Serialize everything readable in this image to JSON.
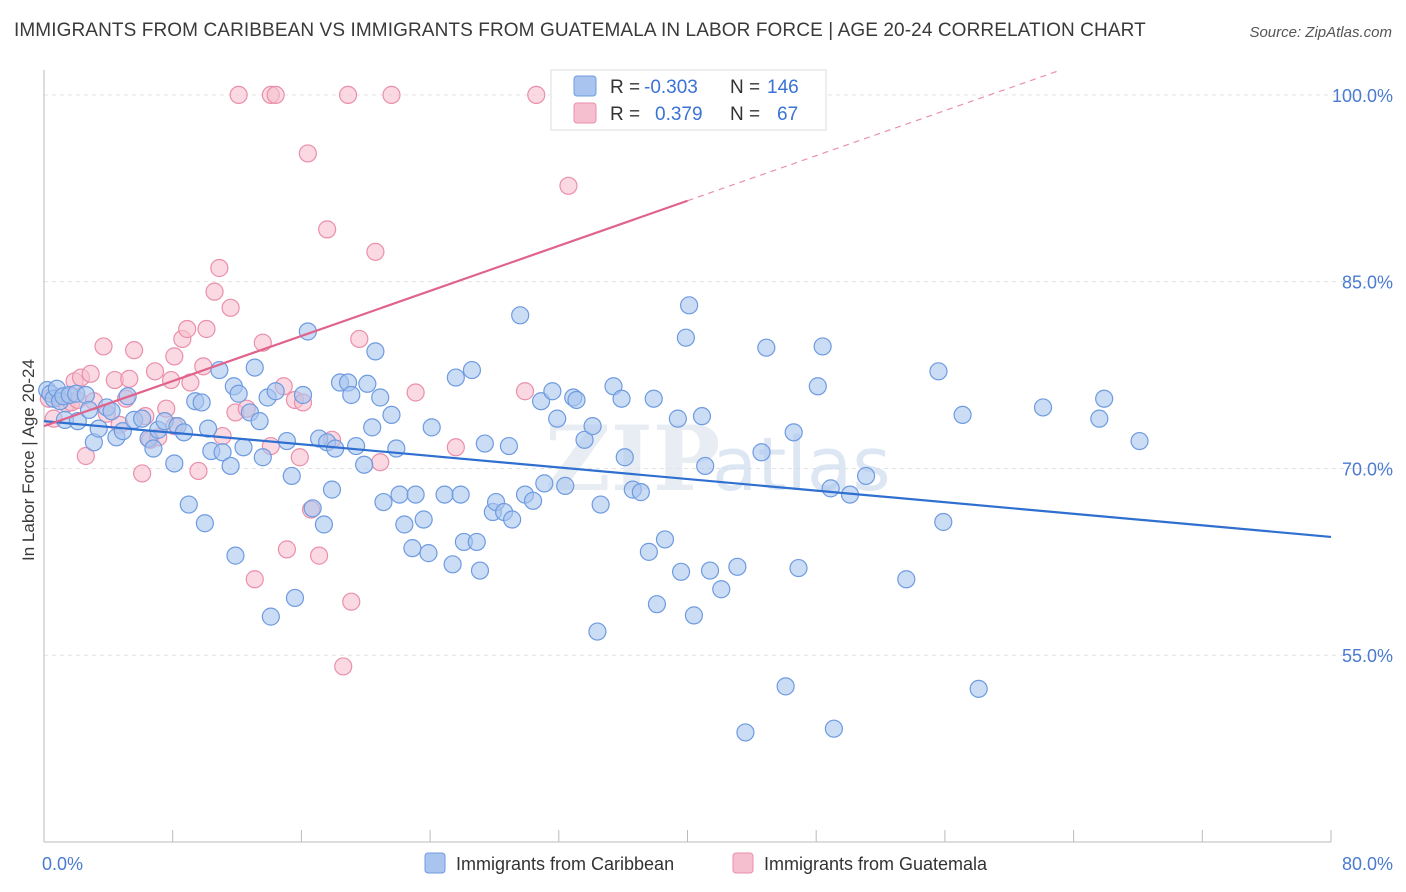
{
  "header": {
    "title": "IMMIGRANTS FROM CARIBBEAN VS IMMIGRANTS FROM GUATEMALA IN LABOR FORCE | AGE 20-24 CORRELATION CHART",
    "source": "Source: ZipAtlas.com"
  },
  "colors": {
    "blue_fill": "#a9c4ee",
    "blue_stroke": "#6e9be0",
    "blue_line": "#2f6fd0",
    "pink_fill": "#f6bfcf",
    "pink_stroke": "#ea8fab",
    "pink_line": "#e0638c",
    "grid": "#e3e3e3",
    "tick_text": "#4a7bd0"
  },
  "watermark": {
    "zip": "ZIP",
    "atlas": "atlas"
  },
  "chart_data": {
    "type": "scatter",
    "title": "IMMIGRANTS FROM CARIBBEAN VS IMMIGRANTS FROM GUATEMALA IN LABOR FORCE | AGE 20-24 CORRELATION CHART",
    "xlabel": "",
    "ylabel": "In Labor Force | Age 20-24",
    "xlim": [
      0,
      80
    ],
    "ylim": [
      40,
      102
    ],
    "x_tick_labels": [
      "0.0%",
      "80.0%"
    ],
    "y_ticks": [
      55,
      70,
      85,
      100
    ],
    "y_tick_labels": [
      "55.0%",
      "70.0%",
      "85.0%",
      "100.0%"
    ],
    "legend": [
      {
        "name": "Immigrants from Caribbean",
        "r_label": "R =",
        "r": "-0.303",
        "n_label": "N =",
        "n": "146"
      },
      {
        "name": "Immigrants from Guatemala",
        "r_label": "R =",
        "r": "0.379",
        "n_label": "N =",
        "n": "67"
      }
    ],
    "series": [
      {
        "name": "Immigrants from Caribbean",
        "color": "#a9c4ee",
        "trend": {
          "x": [
            0,
            80
          ],
          "y": [
            73.8,
            64.5
          ],
          "dash_from_x": 80
        },
        "points": [
          [
            0.2,
            76.3
          ],
          [
            0.4,
            76.0
          ],
          [
            0.6,
            75.6
          ],
          [
            0.8,
            76.4
          ],
          [
            1.0,
            75.4
          ],
          [
            1.2,
            75.8
          ],
          [
            1.6,
            75.9
          ],
          [
            2.0,
            76.0
          ],
          [
            1.3,
            73.9
          ],
          [
            2.1,
            73.8
          ],
          [
            2.6,
            75.9
          ],
          [
            2.8,
            74.7
          ],
          [
            3.1,
            72.1
          ],
          [
            3.4,
            73.2
          ],
          [
            3.9,
            74.9
          ],
          [
            4.2,
            74.6
          ],
          [
            4.5,
            72.5
          ],
          [
            4.9,
            73.0
          ],
          [
            5.2,
            75.8
          ],
          [
            5.6,
            73.9
          ],
          [
            6.1,
            74.0
          ],
          [
            6.5,
            72.4
          ],
          [
            6.8,
            71.6
          ],
          [
            7.1,
            73.1
          ],
          [
            7.5,
            73.8
          ],
          [
            8.1,
            70.4
          ],
          [
            8.3,
            73.4
          ],
          [
            8.7,
            72.9
          ],
          [
            9.0,
            67.1
          ],
          [
            9.4,
            75.4
          ],
          [
            9.8,
            75.3
          ],
          [
            10.0,
            65.6
          ],
          [
            10.2,
            73.2
          ],
          [
            10.4,
            71.4
          ],
          [
            10.9,
            77.9
          ],
          [
            11.1,
            71.3
          ],
          [
            11.6,
            70.2
          ],
          [
            11.8,
            76.6
          ],
          [
            12.1,
            76.0
          ],
          [
            12.4,
            71.7
          ],
          [
            12.8,
            74.5
          ],
          [
            13.1,
            78.1
          ],
          [
            13.4,
            73.8
          ],
          [
            13.6,
            70.9
          ],
          [
            13.9,
            75.7
          ],
          [
            14.1,
            58.1
          ],
          [
            14.4,
            76.2
          ],
          [
            15.1,
            72.2
          ],
          [
            15.4,
            69.4
          ],
          [
            15.6,
            59.6
          ],
          [
            16.1,
            75.9
          ],
          [
            16.4,
            81.0
          ],
          [
            16.7,
            66.8
          ],
          [
            17.1,
            72.4
          ],
          [
            17.4,
            65.5
          ],
          [
            17.6,
            72.1
          ],
          [
            17.9,
            68.3
          ],
          [
            18.1,
            71.6
          ],
          [
            18.4,
            76.9
          ],
          [
            18.9,
            76.9
          ],
          [
            19.1,
            75.9
          ],
          [
            19.4,
            71.8
          ],
          [
            19.9,
            70.3
          ],
          [
            20.1,
            76.8
          ],
          [
            20.4,
            73.3
          ],
          [
            20.6,
            79.4
          ],
          [
            20.9,
            75.7
          ],
          [
            21.1,
            67.3
          ],
          [
            21.6,
            74.3
          ],
          [
            21.9,
            71.6
          ],
          [
            22.1,
            67.9
          ],
          [
            22.4,
            65.5
          ],
          [
            22.9,
            63.6
          ],
          [
            23.1,
            67.9
          ],
          [
            23.6,
            65.9
          ],
          [
            23.9,
            63.2
          ],
          [
            24.1,
            73.3
          ],
          [
            24.9,
            67.9
          ],
          [
            25.4,
            62.3
          ],
          [
            25.6,
            77.3
          ],
          [
            25.9,
            67.9
          ],
          [
            26.1,
            64.1
          ],
          [
            26.6,
            77.9
          ],
          [
            26.9,
            64.1
          ],
          [
            27.1,
            61.8
          ],
          [
            27.4,
            72.0
          ],
          [
            27.9,
            66.5
          ],
          [
            28.1,
            67.3
          ],
          [
            28.6,
            66.5
          ],
          [
            28.9,
            71.8
          ],
          [
            29.1,
            65.9
          ],
          [
            29.6,
            82.3
          ],
          [
            29.9,
            67.9
          ],
          [
            30.4,
            67.4
          ],
          [
            30.9,
            75.4
          ],
          [
            31.1,
            68.8
          ],
          [
            31.6,
            76.2
          ],
          [
            31.9,
            74.0
          ],
          [
            32.4,
            68.6
          ],
          [
            32.9,
            75.7
          ],
          [
            33.1,
            75.5
          ],
          [
            33.6,
            72.3
          ],
          [
            34.1,
            73.4
          ],
          [
            34.4,
            56.9
          ],
          [
            34.6,
            67.1
          ],
          [
            35.4,
            76.6
          ],
          [
            35.9,
            75.6
          ],
          [
            36.1,
            70.9
          ],
          [
            36.6,
            68.3
          ],
          [
            37.1,
            68.1
          ],
          [
            37.6,
            63.3
          ],
          [
            37.9,
            75.6
          ],
          [
            38.1,
            59.1
          ],
          [
            38.6,
            64.3
          ],
          [
            39.4,
            74.0
          ],
          [
            39.9,
            80.5
          ],
          [
            39.6,
            61.7
          ],
          [
            40.1,
            83.1
          ],
          [
            40.4,
            58.2
          ],
          [
            40.9,
            74.2
          ],
          [
            41.1,
            70.2
          ],
          [
            41.4,
            61.8
          ],
          [
            42.1,
            60.3
          ],
          [
            43.1,
            62.1
          ],
          [
            44.6,
            71.3
          ],
          [
            44.9,
            79.7
          ],
          [
            46.1,
            52.5
          ],
          [
            46.6,
            72.9
          ],
          [
            46.9,
            62.0
          ],
          [
            48.1,
            76.6
          ],
          [
            48.4,
            79.8
          ],
          [
            48.9,
            68.4
          ],
          [
            49.1,
            49.1
          ],
          [
            50.1,
            67.9
          ],
          [
            51.1,
            69.4
          ],
          [
            53.6,
            61.1
          ],
          [
            55.6,
            77.8
          ],
          [
            55.9,
            65.7
          ],
          [
            57.1,
            74.3
          ],
          [
            58.1,
            52.3
          ],
          [
            62.1,
            74.9
          ],
          [
            65.6,
            74.0
          ],
          [
            65.9,
            75.6
          ],
          [
            68.1,
            72.2
          ],
          [
            43.6,
            48.8
          ],
          [
            11.9,
            63.0
          ]
        ]
      },
      {
        "name": "Immigrants from Guatemala",
        "color": "#f6bfcf",
        "trend": {
          "x": [
            0,
            80
          ],
          "y": [
            73.4,
            109.6
          ],
          "dash_from_x": 40
        },
        "points": [
          [
            0.3,
            75.6
          ],
          [
            0.6,
            74.0
          ],
          [
            0.9,
            75.7
          ],
          [
            1.4,
            75.2
          ],
          [
            1.7,
            75.3
          ],
          [
            1.9,
            77.0
          ],
          [
            2.1,
            75.5
          ],
          [
            2.3,
            77.3
          ],
          [
            2.6,
            71.0
          ],
          [
            2.9,
            77.6
          ],
          [
            3.1,
            75.4
          ],
          [
            3.7,
            79.8
          ],
          [
            3.9,
            74.4
          ],
          [
            4.4,
            77.1
          ],
          [
            4.7,
            73.5
          ],
          [
            5.1,
            75.6
          ],
          [
            5.3,
            77.2
          ],
          [
            5.6,
            79.5
          ],
          [
            6.1,
            69.6
          ],
          [
            6.3,
            74.2
          ],
          [
            6.6,
            72.3
          ],
          [
            6.9,
            77.8
          ],
          [
            7.1,
            72.5
          ],
          [
            7.6,
            74.8
          ],
          [
            7.9,
            77.1
          ],
          [
            8.1,
            79.0
          ],
          [
            8.6,
            80.4
          ],
          [
            8.9,
            81.2
          ],
          [
            9.1,
            76.9
          ],
          [
            9.6,
            69.8
          ],
          [
            9.9,
            78.2
          ],
          [
            10.1,
            81.2
          ],
          [
            10.6,
            84.2
          ],
          [
            10.9,
            86.1
          ],
          [
            11.1,
            72.6
          ],
          [
            11.6,
            82.9
          ],
          [
            11.9,
            74.5
          ],
          [
            12.1,
            100.0
          ],
          [
            12.6,
            74.8
          ],
          [
            13.1,
            61.1
          ],
          [
            13.6,
            80.1
          ],
          [
            14.1,
            100.0
          ],
          [
            14.4,
            100.0
          ],
          [
            14.1,
            71.8
          ],
          [
            14.9,
            76.6
          ],
          [
            15.1,
            63.5
          ],
          [
            15.6,
            75.5
          ],
          [
            15.9,
            70.9
          ],
          [
            16.1,
            75.3
          ],
          [
            16.4,
            95.3
          ],
          [
            16.6,
            66.7
          ],
          [
            17.1,
            63.0
          ],
          [
            17.6,
            89.2
          ],
          [
            17.9,
            72.3
          ],
          [
            18.6,
            54.1
          ],
          [
            18.9,
            100.0
          ],
          [
            19.1,
            59.3
          ],
          [
            19.6,
            80.4
          ],
          [
            20.6,
            87.4
          ],
          [
            20.9,
            70.5
          ],
          [
            21.6,
            100.0
          ],
          [
            23.1,
            76.1
          ],
          [
            25.6,
            71.7
          ],
          [
            29.9,
            76.2
          ],
          [
            30.6,
            100.0
          ],
          [
            32.6,
            92.7
          ],
          [
            8.1,
            73.4
          ]
        ]
      }
    ]
  }
}
